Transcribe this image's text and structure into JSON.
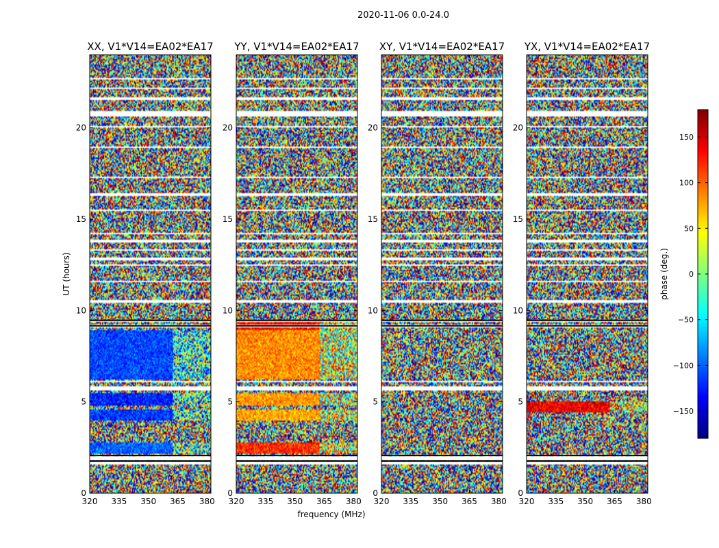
{
  "figure_title": "2020-11-06 0.0-24.0",
  "chart_data": {
    "type": "heatmap",
    "xlabel": "frequency (MHz)",
    "ylabel": "UT (hours)",
    "xlim": [
      320,
      382
    ],
    "ylim": [
      0,
      24
    ],
    "xticks": [
      320,
      335,
      350,
      365,
      380
    ],
    "yticks": [
      0,
      5,
      10,
      15,
      20
    ],
    "colorbar": {
      "label": "phase (deg.)",
      "range": [
        -180,
        180
      ],
      "ticks": [
        150,
        100,
        50,
        0,
        -50,
        -100,
        -150
      ],
      "tick_labels": [
        "150",
        "100",
        "50",
        "0",
        "−50",
        "−100",
        "−150"
      ],
      "colormap": "jet",
      "colors": [
        "#00007f",
        "#0000ff",
        "#007fff",
        "#00ffff",
        "#7fff7f",
        "#ffff00",
        "#ff7f00",
        "#ff0000",
        "#7f0000"
      ]
    },
    "flagged_bands_hours": [
      [
        1.55,
        1.7
      ],
      [
        1.8,
        2.05
      ],
      [
        5.65,
        5.85
      ],
      [
        6.05,
        6.15
      ],
      [
        9.1,
        9.25
      ],
      [
        9.35,
        9.45
      ],
      [
        10.45,
        10.55
      ],
      [
        11.55,
        11.65
      ],
      [
        12.45,
        12.55
      ],
      [
        12.75,
        12.9
      ],
      [
        13.25,
        13.35
      ],
      [
        13.75,
        13.85
      ],
      [
        14.15,
        14.25
      ],
      [
        15.45,
        15.55
      ],
      [
        16.3,
        16.4
      ],
      [
        17.25,
        17.35
      ],
      [
        18.9,
        19.0
      ],
      [
        20.0,
        20.1
      ],
      [
        20.65,
        20.9
      ],
      [
        21.55,
        21.65
      ],
      [
        22.1,
        22.2
      ],
      [
        22.65,
        22.75
      ]
    ],
    "panels": [
      {
        "title": "XX, V1*V14=EA02*EA17",
        "coherent_segments": [
          {
            "t0": 2.2,
            "t1": 2.8,
            "phase_deg": -100
          },
          {
            "t0": 4.0,
            "t1": 4.6,
            "phase_deg": -115
          },
          {
            "t0": 4.8,
            "t1": 5.5,
            "phase_deg": -125
          },
          {
            "t0": 6.2,
            "t1": 8.9,
            "phase_deg": -110
          }
        ]
      },
      {
        "title": "YY, V1*V14=EA02*EA17",
        "coherent_segments": [
          {
            "t0": 2.2,
            "t1": 2.8,
            "phase_deg": 120
          },
          {
            "t0": 4.0,
            "t1": 4.6,
            "phase_deg": 75
          },
          {
            "t0": 4.8,
            "t1": 5.5,
            "phase_deg": 80
          },
          {
            "t0": 6.2,
            "t1": 8.9,
            "phase_deg": 85
          },
          {
            "t0": 8.9,
            "t1": 9.4,
            "phase_deg": 130
          }
        ]
      },
      {
        "title": "XY, V1*V14=EA02*EA17",
        "coherent_segments": []
      },
      {
        "title": "YX, V1*V14=EA02*EA17",
        "coherent_segments": [
          {
            "t0": 4.4,
            "t1": 5.0,
            "phase_deg": 140
          }
        ]
      }
    ]
  }
}
